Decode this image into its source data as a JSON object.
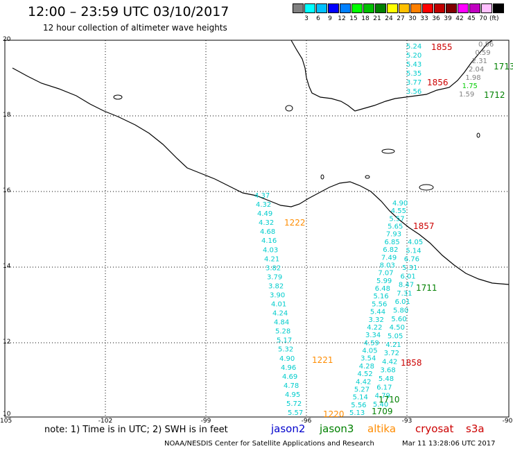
{
  "header": {
    "title": "12:00 – 23:59 UTC 03/10/2017",
    "subtitle": "12 hour collection of altimeter wave heights"
  },
  "legend": {
    "colors": [
      "#808080",
      "#00ffff",
      "#00c0ff",
      "#0000ff",
      "#0080ff",
      "#00ff00",
      "#00c000",
      "#008000",
      "#ffff00",
      "#ffc000",
      "#ff8000",
      "#ff0000",
      "#c00000",
      "#800000",
      "#ff00ff",
      "#c000c0",
      "#ffc0ff",
      "#000000"
    ],
    "labels": [
      "3",
      "6",
      "9",
      "12",
      "15",
      "18",
      "21",
      "24",
      "27",
      "30",
      "33",
      "36",
      "39",
      "42",
      "45",
      "70"
    ],
    "unit": "(ft)"
  },
  "axes": {
    "lon_labels": [
      "-105",
      "-102",
      "-99",
      "-96",
      "-93",
      "-90"
    ],
    "lat_labels": [
      "20",
      "18",
      "16",
      "14",
      "12",
      "10"
    ]
  },
  "tracks": {
    "track_a": [
      "4.37",
      "4.32",
      "4.49",
      "4.32",
      "4.68",
      "4.16",
      "4.03",
      "4.21",
      "3.82",
      "3.79",
      "3.82",
      "3.90",
      "4.01",
      "4.24",
      "4.84",
      "5.28",
      "5.17",
      "5.32",
      "4.90",
      "4.96",
      "4.69",
      "4.78",
      "4.95",
      "5.72",
      "5.57"
    ],
    "track_b": [
      "5.13",
      "5.56",
      "5.14",
      "5.27",
      "4.42",
      "4.52",
      "4.28",
      "3.54",
      "4.05",
      "4.59",
      "3.34",
      "4.22",
      "3.32",
      "5.44",
      "5.56",
      "5.16",
      "6.48",
      "5.99",
      "7.07",
      "8.03",
      "7.49",
      "6.82",
      "6.85",
      "7.93",
      "5.65",
      "5.57",
      "4.55",
      "4.90"
    ],
    "track_b_side": [
      "5.40",
      "4.79",
      "6.17",
      "5.48",
      "3.68",
      "4.42",
      "3.72",
      "4.21",
      "5.05",
      "4.50",
      "5.60",
      "5.80",
      "6.01",
      "7.31",
      "8.47",
      "6.01",
      "5.31",
      "6.76",
      "5.14",
      "4.05"
    ],
    "north_a": [
      "5.24",
      "5.20",
      "5.43",
      "5.35",
      "3.77",
      "3.56"
    ],
    "north_b": [
      "0.56",
      "0.59",
      "2.31",
      "2.04",
      "1.98",
      "1.75",
      "1.59"
    ]
  },
  "times": {
    "t1220": "1220",
    "t1221": "1221",
    "t1222": "1222",
    "t1709": "1709",
    "t1710": "1710",
    "t1711": "1711",
    "t1712": "1712",
    "t1713": "1713",
    "t1855": "1855",
    "t1856": "1856",
    "t1857": "1857",
    "t1858": "1858"
  },
  "footer": {
    "note": "note: 1) Time is in UTC; 2) SWH is in feet",
    "sat_jason2": "jason2",
    "sat_jason3": "jason3",
    "sat_altika": "altika",
    "sat_cryosat": "cryosat",
    "sat_s3a": "s3a",
    "credit": "NOAA/NESDIS Center for Satellite Applications and Research",
    "timestamp": "Mar 11 13:28:06 UTC 2017"
  },
  "colors": {
    "jason2": "#0000cc",
    "jason3": "#008000",
    "altika": "#ff8c00",
    "cryosat": "#cc0000",
    "s3a": "#cc0000",
    "swh_cyan": "#00cccc",
    "swh_gray": "#808080",
    "swh_green": "#00cc00"
  }
}
